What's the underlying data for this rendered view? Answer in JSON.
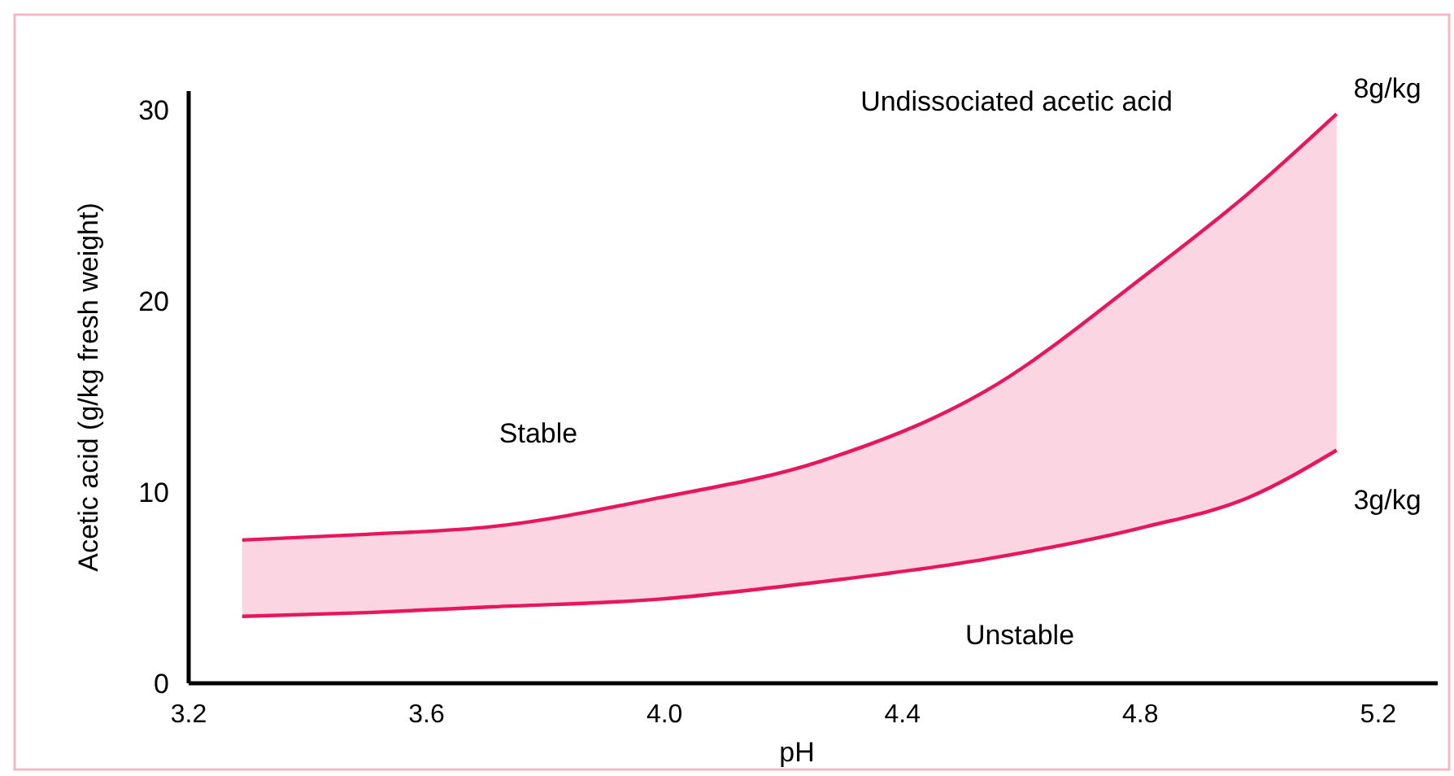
{
  "chart_data": {
    "type": "line",
    "xlabel": "pH",
    "ylabel": "Acetic acid (g/kg fresh weight)",
    "xlim": [
      3.2,
      5.3
    ],
    "ylim": [
      0,
      31
    ],
    "xticks": [
      {
        "value": 3.2,
        "label": "3.2"
      },
      {
        "value": 3.6,
        "label": "3.6"
      },
      {
        "value": 4.0,
        "label": "4.0"
      },
      {
        "value": 4.4,
        "label": "4.4"
      },
      {
        "value": 4.8,
        "label": "4.8"
      },
      {
        "value": 5.2,
        "label": "5.2"
      }
    ],
    "yticks": [
      0,
      10,
      20,
      30
    ],
    "grid": false,
    "x": [
      3.29,
      3.5,
      3.71,
      3.99,
      4.26,
      4.54,
      4.81,
      4.98,
      5.13
    ],
    "series": [
      {
        "color": "#e8175d",
        "values": [
          7.5,
          7.8,
          8.2,
          9.7,
          11.6,
          15.3,
          21.4,
          25.6,
          29.8
        ],
        "lower": [
          3.5,
          3.7,
          4.0,
          4.4,
          5.3,
          6.5,
          8.2,
          9.7,
          12.2
        ],
        "upper": [
          7.5,
          7.8,
          8.2,
          9.7,
          11.6,
          15.3,
          21.4,
          25.6,
          29.8
        ]
      },
      {
        "color": "#e8175d",
        "values": [
          3.5,
          3.7,
          4.0,
          4.4,
          5.3,
          6.5,
          8.2,
          9.7,
          12.2
        ]
      }
    ],
    "annotations": [
      "Undissociated acetic acid",
      "Stable",
      "Unstable",
      "8g/kg",
      "3g/kg"
    ]
  }
}
